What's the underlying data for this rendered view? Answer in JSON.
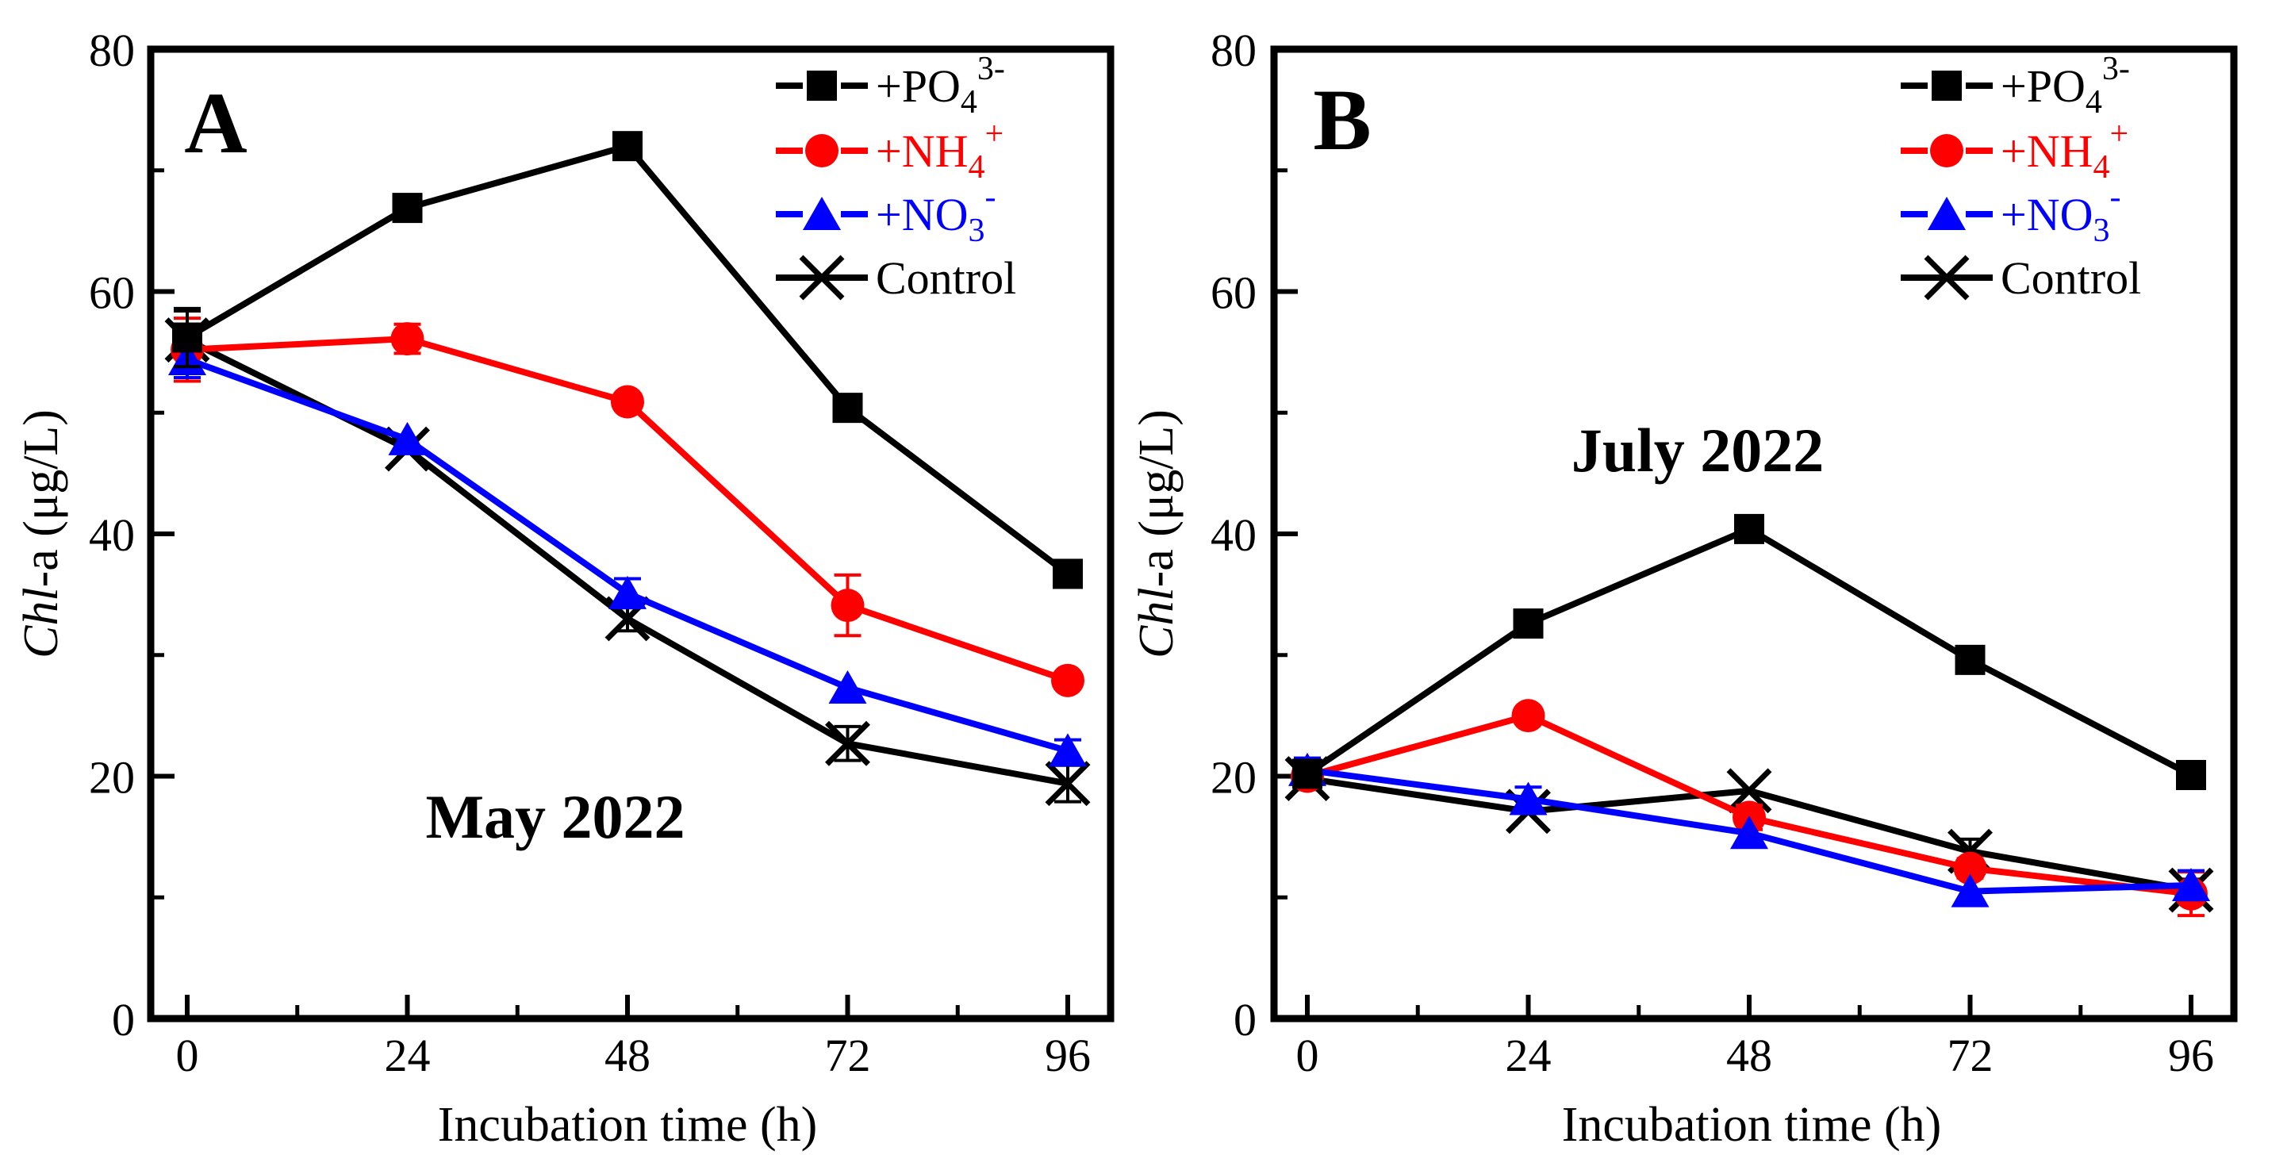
{
  "figure": {
    "background": "#ffffff",
    "colors": {
      "po4": "#000000",
      "nh4": "#ff0000",
      "no3": "#0000ff",
      "control": "#000000"
    }
  },
  "chart_data": [
    {
      "type": "line",
      "panel_label": "A",
      "caption": "May 2022",
      "xlabel": "Incubation time (h)",
      "ylabel": {
        "italic": "Chl",
        "rest": "-a (μg/L)"
      },
      "xlim": [
        0,
        96
      ],
      "ylim": [
        0,
        80
      ],
      "grid": false,
      "legend_position": "top-right",
      "x_tick_labels": [
        "0",
        "24",
        "48",
        "72",
        "96"
      ],
      "y_tick_labels": [
        "0",
        "20",
        "40",
        "60",
        "80"
      ],
      "x_tick_values": [
        0,
        24,
        48,
        72,
        96
      ],
      "y_tick_values": [
        0,
        20,
        40,
        60,
        80
      ],
      "x_minor_ticks": [
        12,
        36,
        60,
        84
      ],
      "y_minor_ticks": [
        10,
        30,
        50,
        70
      ],
      "x": [
        0,
        24,
        48,
        72,
        96
      ],
      "series": [
        {
          "key": "po4",
          "name": "+PO4 3-",
          "legend": {
            "base": "+PO",
            "sub": "4",
            "sup": "3-"
          },
          "marker": "square",
          "color": "#000000",
          "values": [
            56.2,
            66.9,
            72.0,
            50.4,
            36.7
          ],
          "errors": [
            2.4,
            0,
            0,
            0,
            0
          ]
        },
        {
          "key": "nh4",
          "name": "+NH4 +",
          "legend": {
            "base": "+NH",
            "sub": "4",
            "sup": "+"
          },
          "marker": "circle",
          "color": "#ff0000",
          "values": [
            55.2,
            56.1,
            50.9,
            34.1,
            27.9
          ],
          "errors": [
            2.6,
            1.2,
            0,
            2.5,
            0
          ]
        },
        {
          "key": "no3",
          "name": "+NO3 -",
          "legend": {
            "base": "+NO",
            "sub": "3",
            "sup": "-"
          },
          "marker": "triangle-up",
          "color": "#0000ff",
          "values": [
            54.4,
            47.8,
            35.1,
            27.3,
            22.1
          ],
          "errors": [
            1.5,
            0,
            1.2,
            0,
            0.9
          ]
        },
        {
          "key": "control",
          "name": "Control",
          "legend": {
            "base": "Control"
          },
          "marker": "x-cross",
          "color": "#000000",
          "values": [
            56.0,
            47.0,
            33.0,
            22.7,
            19.4
          ],
          "errors": [
            2.4,
            0,
            1.0,
            1.4,
            1.5
          ]
        }
      ]
    },
    {
      "type": "line",
      "panel_label": "B",
      "caption": "July 2022",
      "xlabel": "Incubation time (h)",
      "ylabel": {
        "italic": "Chl",
        "rest": "-a (μg/L)"
      },
      "xlim": [
        0,
        96
      ],
      "ylim": [
        0,
        80
      ],
      "grid": false,
      "legend_position": "top-right",
      "x_tick_labels": [
        "0",
        "24",
        "48",
        "72",
        "96"
      ],
      "y_tick_labels": [
        "0",
        "20",
        "40",
        "60",
        "80"
      ],
      "x_tick_values": [
        0,
        24,
        48,
        72,
        96
      ],
      "y_tick_values": [
        0,
        20,
        40,
        60,
        80
      ],
      "x_minor_ticks": [
        12,
        36,
        60,
        84
      ],
      "y_minor_ticks": [
        10,
        30,
        50,
        70
      ],
      "x": [
        0,
        24,
        48,
        72,
        96
      ],
      "series": [
        {
          "key": "po4",
          "name": "+PO4 3-",
          "legend": {
            "base": "+PO",
            "sub": "4",
            "sup": "3-"
          },
          "marker": "square",
          "color": "#000000",
          "values": [
            20.2,
            32.6,
            40.4,
            29.6,
            20.1
          ],
          "errors": [
            0.9,
            0,
            0,
            0,
            0
          ]
        },
        {
          "key": "nh4",
          "name": "+NH4 +",
          "legend": {
            "base": "+NH",
            "sub": "4",
            "sup": "+"
          },
          "marker": "circle",
          "color": "#ff0000",
          "values": [
            20.0,
            25.0,
            16.6,
            12.4,
            10.3
          ],
          "errors": [
            0.9,
            0,
            1.0,
            0.8,
            1.8
          ]
        },
        {
          "key": "no3",
          "name": "+NO3 -",
          "legend": {
            "base": "+NO",
            "sub": "3",
            "sup": "-"
          },
          "marker": "triangle-up",
          "color": "#0000ff",
          "values": [
            20.5,
            18.1,
            15.3,
            10.5,
            11.0
          ],
          "errors": [
            1.0,
            1.0,
            0,
            0,
            1.2
          ]
        },
        {
          "key": "control",
          "name": "Control",
          "legend": {
            "base": "Control"
          },
          "marker": "x-cross",
          "color": "#000000",
          "values": [
            19.8,
            17.1,
            18.8,
            13.8,
            10.6
          ],
          "errors": [
            0.9,
            0,
            0,
            1.0,
            0.9
          ]
        }
      ]
    }
  ]
}
